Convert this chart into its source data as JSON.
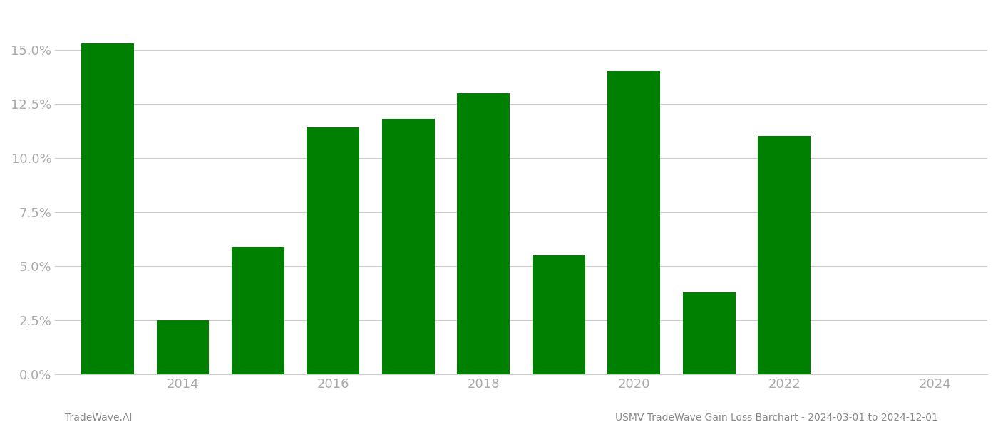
{
  "years": [
    2013,
    2014,
    2015,
    2016,
    2017,
    2018,
    2019,
    2020,
    2021,
    2022
  ],
  "values": [
    0.153,
    0.025,
    0.059,
    0.114,
    0.118,
    0.13,
    0.055,
    0.14,
    0.038,
    0.11
  ],
  "bar_color": "#008000",
  "background_color": "#ffffff",
  "grid_color": "#cccccc",
  "xlim": [
    2012.3,
    2024.7
  ],
  "ylim": [
    0,
    0.168
  ],
  "yticks": [
    0.0,
    0.025,
    0.05,
    0.075,
    0.1,
    0.125,
    0.15
  ],
  "xticks": [
    2014,
    2016,
    2018,
    2020,
    2022,
    2024
  ],
  "footer_left": "TradeWave.AI",
  "footer_right": "USMV TradeWave Gain Loss Barchart - 2024-03-01 to 2024-12-01",
  "bar_width": 0.7,
  "tick_label_color": "#aaaaaa",
  "footer_color": "#888888",
  "tick_fontsize": 13,
  "footer_fontsize": 10
}
